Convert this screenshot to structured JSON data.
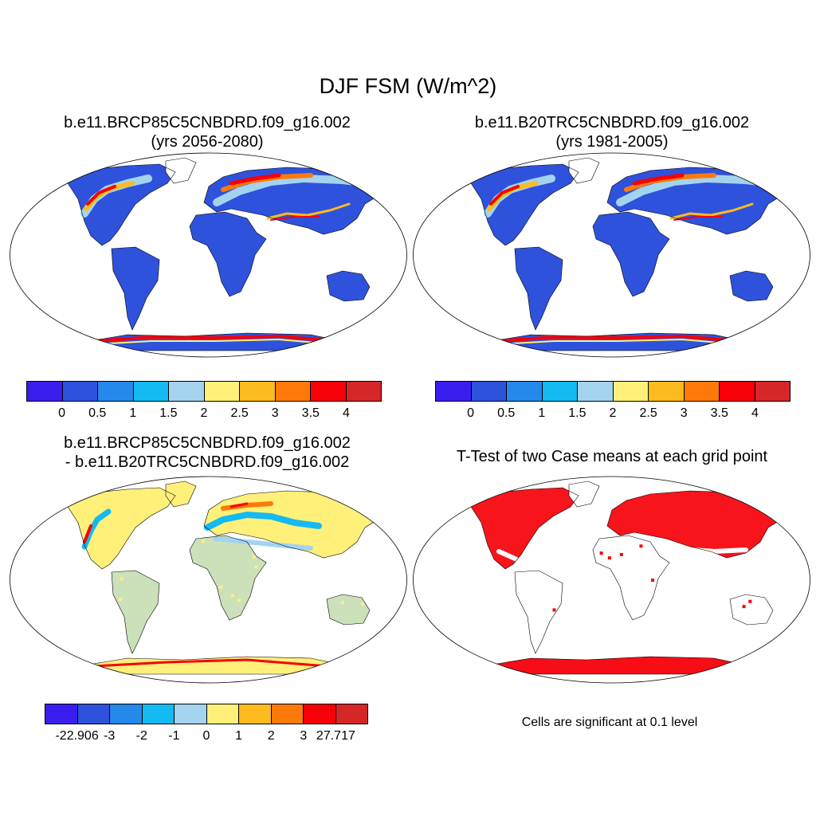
{
  "figure": {
    "title": "DJF FSM (W/m^2)"
  },
  "panels": [
    {
      "id": "future",
      "title_line1": "b.e11.BRCP85C5CNBDRD.f09_g16.002",
      "title_line2": "(yrs 2056-2080)",
      "colorbar": {
        "colors": [
          "#3a1ef0",
          "#2f52dc",
          "#2489eb",
          "#14baf2",
          "#a3d3ef",
          "#fff07a",
          "#fdbb1d",
          "#fd7a0a",
          "#f70008",
          "#d62728"
        ],
        "labels": [
          "0",
          "0.5",
          "1",
          "1.5",
          "2",
          "2.5",
          "3",
          "3.5",
          "4"
        ]
      }
    },
    {
      "id": "historical",
      "title_line1": "b.e11.B20TRC5CNBDRD.f09_g16.002",
      "title_line2": "(yrs 1981-2005)",
      "colorbar": {
        "colors": [
          "#3a1ef0",
          "#2f52dc",
          "#2489eb",
          "#14baf2",
          "#a3d3ef",
          "#fff07a",
          "#fdbb1d",
          "#fd7a0a",
          "#f70008",
          "#d62728"
        ],
        "labels": [
          "0",
          "0.5",
          "1",
          "1.5",
          "2",
          "2.5",
          "3",
          "3.5",
          "4"
        ]
      }
    },
    {
      "id": "difference",
      "title_line1": "b.e11.BRCP85C5CNBDRD.f09_g16.002",
      "title_line2": "- b.e11.B20TRC5CNBDRD.f09_g16.002",
      "colorbar": {
        "colors": [
          "#3a1ef0",
          "#2f52dc",
          "#2489eb",
          "#14baf2",
          "#a3d3ef",
          "#fff07a",
          "#fdbb1d",
          "#fd7a0a",
          "#f70008",
          "#d62728"
        ],
        "labels": [
          "-22.906",
          "-3",
          "-2",
          "-1",
          "0",
          "1",
          "2",
          "3",
          "27.717"
        ]
      }
    },
    {
      "id": "ttest",
      "title": "T-Test of two Case means at each grid point",
      "note": "Cells are significant at 0.1 level",
      "significant_color": "#f70008"
    }
  ],
  "map": {
    "ocean_color": "#ffffff",
    "coastline_color": "#000000"
  }
}
